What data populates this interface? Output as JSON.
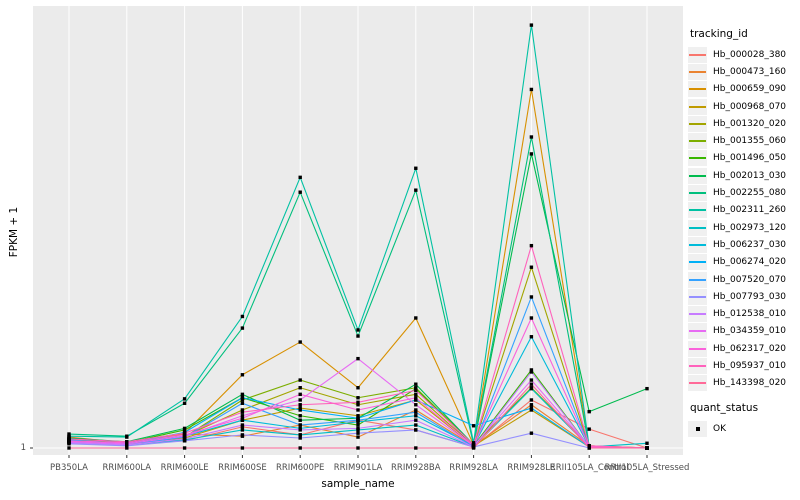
{
  "figure": {
    "y_axis_title": "FPKM + 1",
    "x_axis_title": "sample_name",
    "y_tick_label": "1",
    "legend": {
      "tracking_title": "tracking_id",
      "quant_title": "quant_status",
      "quant_ok_label": "OK"
    },
    "colors": {
      "panel_bg": "#ebebeb",
      "grid": "#ffffff",
      "axis_text": "#4d4d4d",
      "tick": "#333333",
      "marker": "#000000",
      "legend_key_bg": "#f0f0f0"
    }
  },
  "chart_data": {
    "type": "line",
    "title": "",
    "xlabel": "sample_name",
    "ylabel": "FPKM + 1",
    "y_scale": "log10",
    "y_ticks": [
      1
    ],
    "ylim": [
      1,
      3160
    ],
    "grid": "vertical-major-only",
    "legend_position": "right",
    "legend_title": "tracking_id",
    "quant_status_legend": {
      "title": "quant_status",
      "entries": [
        "OK"
      ],
      "marker": "black-square"
    },
    "x_categories": [
      "PB350LA",
      "RRIM600LA",
      "RRIM600LE",
      "RRIM600SE",
      "RRIM600PE",
      "RRIM901LA",
      "RRIM928BA",
      "RRIM928LA",
      "RRIM928LE",
      "RRII105LA_Control",
      "RRII105LA_Stressed"
    ],
    "series": [
      {
        "name": "Hb_000028_380",
        "color": "#F8766D",
        "values": [
          1.16,
          1.08,
          1.14,
          1.47,
          1.27,
          1.66,
          1.39,
          1.02,
          2.4,
          1.41,
          1.0
        ]
      },
      {
        "name": "Hb_000473_160",
        "color": "#EA8331",
        "values": [
          1.22,
          1.1,
          1.29,
          1.24,
          1.52,
          1.22,
          2.0,
          1.04,
          2.2,
          1.04,
          1.0
        ]
      },
      {
        "name": "Hb_000659_090",
        "color": "#D89000",
        "values": [
          1.16,
          1.12,
          1.31,
          3.8,
          6.9,
          3.0,
          10.7,
          1.06,
          690,
          1.02,
          1.0
        ]
      },
      {
        "name": "Hb_000968_070",
        "color": "#C09B00",
        "values": [
          1.12,
          1.08,
          1.2,
          1.66,
          2.07,
          1.8,
          2.4,
          1.04,
          2.0,
          1.02,
          1.0
        ]
      },
      {
        "name": "Hb_001320_020",
        "color": "#A3A500",
        "values": [
          1.1,
          1.06,
          1.24,
          2.0,
          3.0,
          2.2,
          2.66,
          1.04,
          27,
          1.02,
          1.0
        ]
      },
      {
        "name": "Hb_001355_060",
        "color": "#7CAE00",
        "values": [
          1.14,
          1.08,
          1.22,
          2.4,
          3.45,
          2.5,
          3.0,
          1.06,
          3.0,
          1.04,
          1.0
        ]
      },
      {
        "name": "Hb_001496_050",
        "color": "#39B600",
        "values": [
          1.18,
          1.1,
          1.39,
          2.5,
          1.8,
          1.52,
          2.95,
          1.04,
          4.15,
          1.02,
          1.0
        ]
      },
      {
        "name": "Hb_002013_030",
        "color": "#00BB4E",
        "values": [
          1.2,
          1.12,
          1.43,
          2.66,
          1.66,
          1.72,
          3.2,
          1.06,
          213,
          1.94,
          2.95
        ]
      },
      {
        "name": "Hb_002255_080",
        "color": "#00BF7D",
        "values": [
          1.29,
          1.24,
          2.26,
          8.9,
          106,
          7.7,
          110,
          1.06,
          290,
          1.02,
          1.0
        ]
      },
      {
        "name": "Hb_002311_260",
        "color": "#00C1A3",
        "values": [
          1.24,
          1.22,
          2.45,
          11,
          139,
          8.6,
          164,
          1.1,
          2230,
          1.02,
          1.0
        ]
      },
      {
        "name": "Hb_002973_120",
        "color": "#00BFC4",
        "values": [
          1.1,
          1.06,
          1.16,
          1.39,
          1.27,
          1.39,
          1.52,
          1.02,
          2.95,
          1.02,
          1.09
        ]
      },
      {
        "name": "Hb_006237_030",
        "color": "#00BBDA",
        "values": [
          1.14,
          1.1,
          1.24,
          1.66,
          1.43,
          1.61,
          1.8,
          1.04,
          7.6,
          1.02,
          1.0
        ]
      },
      {
        "name": "Hb_006274_020",
        "color": "#00B0F6",
        "values": [
          1.16,
          1.08,
          1.33,
          2.5,
          2.0,
          1.72,
          2.4,
          1.5,
          2.07,
          1.02,
          1.0
        ]
      },
      {
        "name": "Hb_007520_070",
        "color": "#35A2FF",
        "values": [
          1.12,
          1.06,
          1.22,
          2.26,
          1.52,
          1.66,
          1.92,
          1.02,
          15.7,
          1.02,
          1.0
        ]
      },
      {
        "name": "Hb_007793_030",
        "color": "#9590FF",
        "values": [
          1.08,
          1.04,
          1.14,
          1.27,
          1.2,
          1.31,
          1.39,
          1.02,
          1.31,
          1.0,
          1.0
        ]
      },
      {
        "name": "Hb_012538_010",
        "color": "#C77CFF",
        "values": [
          1.1,
          1.06,
          1.18,
          1.52,
          1.39,
          1.43,
          1.66,
          1.02,
          4.0,
          1.02,
          1.0
        ]
      },
      {
        "name": "Hb_034359_010",
        "color": "#E76BF3",
        "values": [
          1.12,
          1.08,
          1.24,
          1.8,
          2.4,
          5.1,
          2.2,
          1.04,
          3.45,
          1.02,
          1.0
        ]
      },
      {
        "name": "Hb_062317_020",
        "color": "#FA62DB",
        "values": [
          1.14,
          1.1,
          1.27,
          1.72,
          2.66,
          2.0,
          2.5,
          1.04,
          10.7,
          1.02,
          1.0
        ]
      },
      {
        "name": "Hb_095937_010",
        "color": "#FF62BC",
        "values": [
          1.18,
          1.12,
          1.31,
          1.92,
          2.2,
          2.3,
          2.86,
          1.06,
          40,
          1.04,
          1.0
        ]
      },
      {
        "name": "Hb_143398_020",
        "color": "#FF6A98",
        "values": [
          1.0,
          1.0,
          1.0,
          1.0,
          1.0,
          1.0,
          1.0,
          1.0,
          3.2,
          1.0,
          1.0
        ]
      }
    ]
  }
}
